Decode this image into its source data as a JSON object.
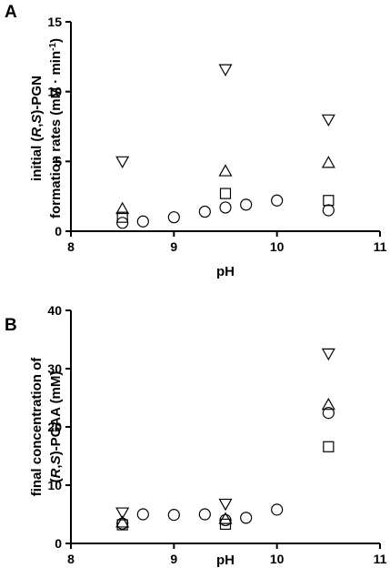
{
  "chart_data": [
    {
      "type": "scatter",
      "panel_label": "A",
      "xlabel": "pH",
      "ylabel_line1": [
        "initial (",
        "R",
        ",",
        "S",
        ")-PGN"
      ],
      "ylabel_line2": [
        "formation rates (mM · min",
        "-1",
        ")"
      ],
      "xlim": [
        8,
        11
      ],
      "ylim": [
        0,
        15
      ],
      "xticks": [
        8,
        9,
        10,
        11
      ],
      "yticks": [
        0,
        5,
        10,
        15
      ],
      "grid": false,
      "series": [
        {
          "marker": "down-triangle",
          "points": [
            [
              8.5,
              5.0
            ],
            [
              9.5,
              11.6
            ],
            [
              10.5,
              8.0
            ]
          ]
        },
        {
          "marker": "up-triangle",
          "points": [
            [
              8.5,
              1.6
            ],
            [
              9.5,
              4.3
            ],
            [
              10.5,
              4.9
            ]
          ]
        },
        {
          "marker": "square",
          "points": [
            [
              8.5,
              1.0
            ],
            [
              9.5,
              2.7
            ],
            [
              10.5,
              2.2
            ]
          ]
        },
        {
          "marker": "circle",
          "points": [
            [
              8.5,
              0.6
            ],
            [
              8.7,
              0.7
            ],
            [
              9.0,
              1.0
            ],
            [
              9.3,
              1.4
            ],
            [
              9.5,
              1.7
            ],
            [
              9.7,
              1.9
            ],
            [
              10.0,
              2.2
            ],
            [
              10.5,
              1.5
            ]
          ]
        }
      ]
    },
    {
      "type": "scatter",
      "panel_label": "B",
      "xlabel": "pH",
      "ylabel_line1": [
        "final concentration of"
      ],
      "ylabel_line2": [
        "(",
        "R",
        ",",
        "S",
        ")-PGAA (mM)"
      ],
      "xlim": [
        8,
        11
      ],
      "ylim": [
        0,
        40
      ],
      "xticks": [
        8,
        9,
        10,
        11
      ],
      "yticks": [
        0,
        10,
        20,
        30,
        40
      ],
      "grid": false,
      "series": [
        {
          "marker": "down-triangle",
          "points": [
            [
              8.5,
              5.3
            ],
            [
              9.5,
              6.8
            ],
            [
              10.5,
              32.6
            ]
          ]
        },
        {
          "marker": "up-triangle",
          "points": [
            [
              8.5,
              3.6
            ],
            [
              9.5,
              4.2
            ],
            [
              10.5,
              23.8
            ]
          ]
        },
        {
          "marker": "square",
          "points": [
            [
              8.5,
              3.2
            ],
            [
              9.5,
              3.3
            ],
            [
              10.5,
              16.6
            ]
          ]
        },
        {
          "marker": "circle",
          "points": [
            [
              8.5,
              3.4
            ],
            [
              8.7,
              5.0
            ],
            [
              9.0,
              4.9
            ],
            [
              9.3,
              5.0
            ],
            [
              9.5,
              4.0
            ],
            [
              9.7,
              4.4
            ],
            [
              10.0,
              5.8
            ],
            [
              10.5,
              22.4
            ]
          ]
        }
      ]
    }
  ]
}
